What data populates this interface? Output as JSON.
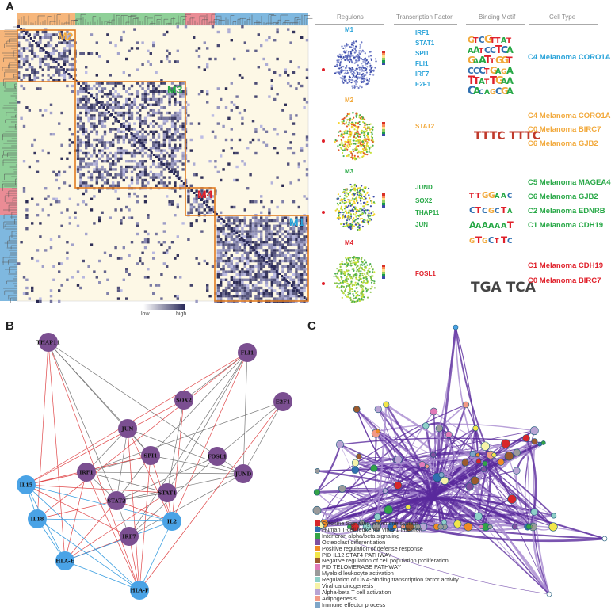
{
  "panels": {
    "a": "A",
    "b": "B",
    "c": "C"
  },
  "panel_a": {
    "module_labels": {
      "m1": "M1",
      "m2": "M2",
      "m3": "M3",
      "m4": "M4"
    },
    "colorbar": {
      "low": "low",
      "high": "high"
    },
    "headers": {
      "regulons": "Regulons",
      "transcription_factor": "Transcription Factor",
      "binding_motif": "Binding Motif",
      "cell_type": "Cell Type"
    },
    "rows": [
      {
        "module": "M1",
        "color": "#29a3d9",
        "tfs": [
          "IRF1",
          "STAT1",
          "SPI1",
          "FLI1",
          "IRF7",
          "E2F1"
        ],
        "cell_types": [
          "C4 Melanoma CORO1A"
        ]
      },
      {
        "module": "M2",
        "color": "#f2a93b",
        "tfs": [
          "STAT2"
        ],
        "cell_types": [
          "C4 Melanoma CORO1A",
          "C0 Melanoma BIRC7",
          "C6 Melanoma GJB2"
        ],
        "motif": "TTTC TTTC"
      },
      {
        "module": "M3",
        "color": "#27a846",
        "tfs": [
          "JUND",
          "SOX2",
          "THAP11",
          "JUN"
        ],
        "cell_types": [
          "C5 Melanoma MAGEA4",
          "C6 Melanoma GJB2",
          "C2 Melanoma EDNRB",
          "C1 Melanoma CDH19"
        ]
      },
      {
        "module": "M4",
        "color": "#e0202a",
        "tfs": [
          "FOSL1"
        ],
        "cell_types": [
          "C1 Melanoma CDH19",
          "C0 Melanoma BIRC7"
        ],
        "motif": "TGA TCA"
      }
    ]
  },
  "panel_b": {
    "nodes": [
      "THAP11",
      "FLI1",
      "SOX2",
      "E2F1",
      "JUN",
      "SPI1",
      "FOSL1",
      "IRF1",
      "JUND",
      "IL15",
      "STAT2",
      "STAT1",
      "IL18",
      "IL2",
      "IRF7",
      "HLA-E",
      "HLA-F"
    ],
    "colors": {
      "tf": "#7b4f91",
      "gene": "#4aa3e6"
    }
  },
  "panel_c": {
    "legend": [
      {
        "label": "Cytokine Signaling in Immune system",
        "color": "#d7262b"
      },
      {
        "label": "Human T-cell leukemia virus 1 infection",
        "color": "#2f6fb0"
      },
      {
        "label": "Interferon alpha/beta signaling",
        "color": "#33a346"
      },
      {
        "label": "Osteoclast differentiation",
        "color": "#7e4fa0"
      },
      {
        "label": "Positive regulation of defense response",
        "color": "#f08a24"
      },
      {
        "label": "PID IL12 STAT4 PATHWAY",
        "color": "#f2e64a"
      },
      {
        "label": "Negative regulation of cell population proliferation",
        "color": "#9c5a2e"
      },
      {
        "label": "PID TELOMERASE PATHWAY",
        "color": "#e07ab8"
      },
      {
        "label": "Myeloid leukocyte activation",
        "color": "#9a9a9a"
      },
      {
        "label": "Regulation of DNA-binding transcription factor activity",
        "color": "#8fd0c8"
      },
      {
        "label": "Viral carcinogenesis",
        "color": "#f7f3a8"
      },
      {
        "label": "Alpha-beta T cell activation",
        "color": "#b8a4d4"
      },
      {
        "label": "Adipogenesis",
        "color": "#f29a86"
      },
      {
        "label": "Immune effector process",
        "color": "#7fa6c8"
      }
    ]
  }
}
